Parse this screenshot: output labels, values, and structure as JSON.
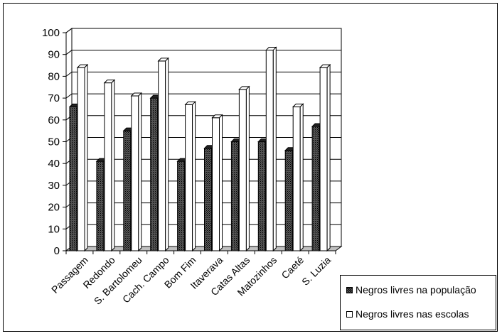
{
  "chart_data": {
    "type": "bar",
    "title": "",
    "xlabel": "",
    "ylabel": "",
    "ylim": [
      0,
      100
    ],
    "yticks": [
      0,
      10,
      20,
      30,
      40,
      50,
      60,
      70,
      80,
      90,
      100
    ],
    "categories": [
      "Passagem",
      "Redondo",
      "S. Bartolomeu",
      "Cach. Campo",
      "Bom Fim",
      "Itaverava",
      "Catas Altas",
      "Matozinhos",
      "Caeté",
      "S. Luzia"
    ],
    "series": [
      {
        "name": "Negros livres na população",
        "values": [
          66,
          41,
          55,
          70,
          41,
          47,
          50,
          50,
          46,
          57
        ],
        "color": "#333333"
      },
      {
        "name": "Negros livres nas escolas",
        "values": [
          84,
          77,
          71,
          87,
          67,
          61,
          74,
          92,
          66,
          84
        ],
        "color": "#ffffff"
      }
    ],
    "grid": true,
    "legend_position": "bottom-right"
  }
}
